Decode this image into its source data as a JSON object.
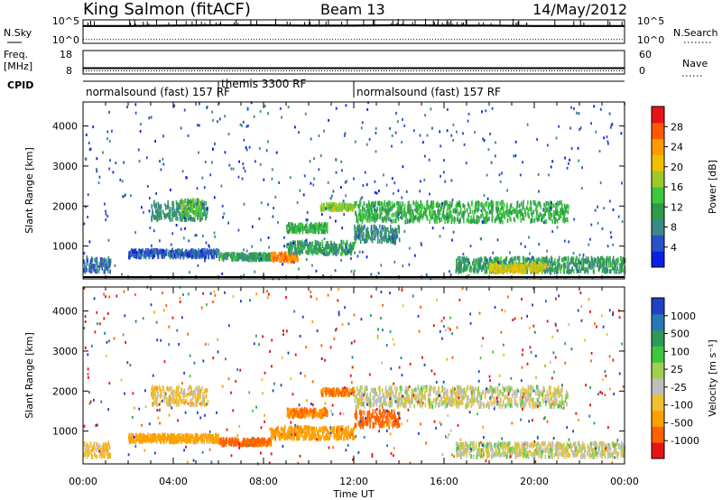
{
  "header": {
    "station": "King Salmon (fitACF)",
    "beam": "Beam 13",
    "date": "14/May/2012"
  },
  "nsky_panel": {
    "left_label": "N.Sky",
    "left_ticks": [
      "10^5",
      "10^0"
    ],
    "right_label": "N.Search",
    "right_ticks": [
      "10^5",
      "10^0"
    ]
  },
  "freq_panel": {
    "left_label_1": "Freq.",
    "left_label_2": "[MHz]",
    "left_ticks": [
      "18",
      "8"
    ],
    "right_label": "Nave",
    "right_ticks": [
      "60",
      "0"
    ]
  },
  "cpid": {
    "label": "CPID",
    "segments": [
      {
        "text": "normalsound (fast) 157 RF",
        "start_hour": 0,
        "end_hour": 6
      },
      {
        "text": "themis 3300 RF",
        "start_hour": 6,
        "end_hour": 12
      },
      {
        "text": "normalsound (fast) 157 RF",
        "start_hour": 12,
        "end_hour": 24
      }
    ]
  },
  "axes": {
    "xlabel": "Time UT",
    "xticks": [
      "00:00",
      "04:00",
      "08:00",
      "12:00",
      "16:00",
      "20:00",
      "00:00"
    ],
    "ylabel": "Slant Range [km]",
    "yticks": [
      "1000",
      "2000",
      "3000",
      "4000"
    ]
  },
  "power_colorbar": {
    "label": "Power [dB]",
    "ticks": [
      "4",
      "8",
      "12",
      "16",
      "20",
      "24",
      "28"
    ],
    "colors": [
      "#0a1ee6",
      "#2850c8",
      "#3a8a8a",
      "#2e9a4a",
      "#3cc83c",
      "#a0c828",
      "#f0c000",
      "#ff9a00",
      "#ff5a00",
      "#e61414"
    ]
  },
  "velocity_colorbar": {
    "label": "Velocity [m s⁻¹]",
    "ticks": [
      "1000",
      "500",
      "100",
      "25",
      "-25",
      "-100",
      "-500",
      "-1000"
    ],
    "colors": [
      "#2040c8",
      "#2878b4",
      "#2e9a5a",
      "#3cc83c",
      "#a0d050",
      "#bebebe",
      "#f0c030",
      "#ffa000",
      "#ff6000",
      "#e61414"
    ]
  },
  "chart_data": [
    {
      "type": "line",
      "title": "N.Sky / N.Search",
      "xlim": [
        0,
        24
      ],
      "ylim_log10": [
        0,
        5
      ],
      "series": [
        {
          "name": "N.Sky",
          "x": [
            0,
            2,
            4,
            6,
            8,
            10,
            12,
            14,
            16,
            18,
            20,
            22,
            24
          ],
          "values_log10": [
            3.9,
            3.9,
            4.0,
            4.1,
            4.1,
            4.0,
            4.0,
            4.1,
            4.0,
            4.0,
            3.9,
            3.9,
            3.9
          ]
        },
        {
          "name": "N.Search",
          "x": [
            0,
            4,
            8,
            12,
            16,
            20,
            24
          ],
          "values_log10": [
            0.5,
            0.5,
            0.5,
            0.5,
            0.5,
            0.5,
            0.5
          ]
        }
      ]
    },
    {
      "type": "line",
      "title": "Freq. / Nave",
      "xlim": [
        0,
        24
      ],
      "series": [
        {
          "name": "Freq.",
          "x": [
            0,
            24
          ],
          "values": [
            10.5,
            10.5
          ]
        },
        {
          "name": "Nave",
          "x": [
            0,
            24
          ],
          "values": [
            5,
            5
          ]
        }
      ]
    },
    {
      "type": "heatmap",
      "title": "Power [dB]",
      "xlim": [
        0,
        24
      ],
      "ylim": [
        180,
        4600
      ],
      "clim": [
        0,
        30
      ],
      "regions": [
        {
          "t0": 0.0,
          "t1": 1.2,
          "r0": 350,
          "r1": 700,
          "value": 6
        },
        {
          "t0": 2.0,
          "t1": 6.0,
          "r0": 720,
          "r1": 900,
          "value": 5
        },
        {
          "t0": 3.0,
          "t1": 5.5,
          "r0": 1650,
          "r1": 2100,
          "value": 9
        },
        {
          "t0": 4.3,
          "t1": 5.3,
          "r0": 1750,
          "r1": 2150,
          "value": 14
        },
        {
          "t0": 6.0,
          "t1": 8.3,
          "r0": 650,
          "r1": 800,
          "value": 10
        },
        {
          "t0": 8.3,
          "t1": 9.5,
          "r0": 620,
          "r1": 820,
          "value": 24
        },
        {
          "t0": 9.0,
          "t1": 12.0,
          "r0": 800,
          "r1": 1100,
          "value": 10
        },
        {
          "t0": 9.0,
          "t1": 10.8,
          "r0": 1350,
          "r1": 1550,
          "value": 12
        },
        {
          "t0": 10.5,
          "t1": 12.0,
          "r0": 1900,
          "r1": 2050,
          "value": 16
        },
        {
          "t0": 12.0,
          "t1": 14.0,
          "r0": 1100,
          "r1": 1500,
          "value": 8
        },
        {
          "t0": 12.0,
          "t1": 21.5,
          "r0": 1600,
          "r1": 2100,
          "value": 12
        },
        {
          "t0": 16.5,
          "t1": 24.0,
          "r0": 350,
          "r1": 700,
          "value": 10
        },
        {
          "t0": 18.0,
          "t1": 20.5,
          "r0": 350,
          "r1": 550,
          "value": 18
        }
      ]
    },
    {
      "type": "heatmap",
      "title": "Velocity [m s⁻¹]",
      "xlim": [
        0,
        24
      ],
      "ylim": [
        180,
        4600
      ],
      "clim": [
        -1000,
        1000
      ],
      "regions": [
        {
          "t0": 0.0,
          "t1": 1.2,
          "r0": 350,
          "r1": 700,
          "value": -60
        },
        {
          "t0": 2.0,
          "t1": 6.0,
          "r0": 720,
          "r1": 900,
          "value": -150
        },
        {
          "t0": 3.0,
          "t1": 5.5,
          "r0": 1650,
          "r1": 2100,
          "value": -60
        },
        {
          "t0": 6.0,
          "t1": 8.3,
          "r0": 650,
          "r1": 800,
          "value": -300
        },
        {
          "t0": 8.3,
          "t1": 12.0,
          "r0": 800,
          "r1": 1100,
          "value": -200
        },
        {
          "t0": 9.0,
          "t1": 10.8,
          "r0": 1350,
          "r1": 1550,
          "value": -250
        },
        {
          "t0": 10.5,
          "t1": 12.0,
          "r0": 1900,
          "r1": 2050,
          "value": -250
        },
        {
          "t0": 12.0,
          "t1": 14.0,
          "r0": 1100,
          "r1": 1500,
          "value": -300
        },
        {
          "t0": 12.0,
          "t1": 21.5,
          "r0": 1600,
          "r1": 2100,
          "value": 0
        },
        {
          "t0": 16.5,
          "t1": 24.0,
          "r0": 350,
          "r1": 700,
          "value": 0
        }
      ]
    }
  ]
}
